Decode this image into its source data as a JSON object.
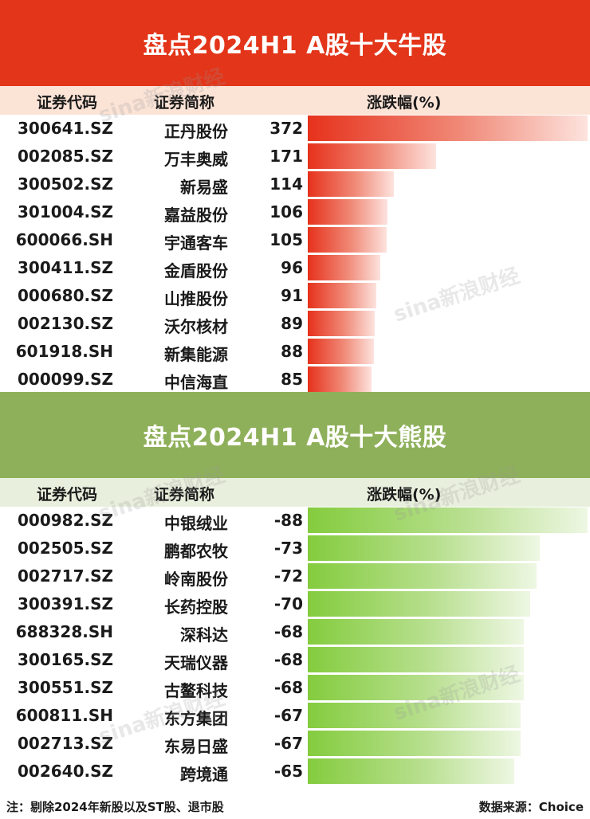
{
  "bull": {
    "title": "盘点2024H1 A股十大牛股",
    "headers": {
      "code": "证券代码",
      "name": "证券简称",
      "change": "涨跌幅(%)"
    }
  },
  "bear": {
    "title": "盘点2024H1 A股十大熊股",
    "headers": {
      "code": "证券代码",
      "name": "证券简称",
      "change": "涨跌幅(%)"
    }
  },
  "footer": {
    "note": "注：剔除2024年新股以及ST股、退市股",
    "source": "数据来源：Choice"
  },
  "watermark": "sina新浪财经",
  "colors": {
    "bull_banner": "#e33519",
    "bull_header_bg": "#fbe3d6",
    "bull_bar": "#e6321c",
    "bear_banner": "#8fb05a",
    "bear_header_bg": "#e8efdc",
    "bear_bar": "#84cc3e"
  },
  "chart_data": [
    {
      "type": "bar",
      "title": "盘点2024H1 A股十大牛股",
      "ylabel": "涨跌幅(%)",
      "categories": [
        "300641.SZ",
        "002085.SZ",
        "300502.SZ",
        "301004.SZ",
        "600066.SH",
        "300411.SZ",
        "000680.SZ",
        "002130.SZ",
        "601918.SH",
        "000099.SZ"
      ],
      "names": [
        "正丹股份",
        "万丰奥威",
        "新易盛",
        "嘉益股份",
        "宇通客车",
        "金盾股份",
        "山推股份",
        "沃尔核材",
        "新集能源",
        "中信海直"
      ],
      "values": [
        372,
        171,
        114,
        106,
        105,
        96,
        91,
        89,
        88,
        85
      ]
    },
    {
      "type": "bar",
      "title": "盘点2024H1 A股十大熊股",
      "ylabel": "涨跌幅(%)",
      "categories": [
        "000982.SZ",
        "002505.SZ",
        "002717.SZ",
        "300391.SZ",
        "688328.SH",
        "300165.SZ",
        "300551.SZ",
        "600811.SH",
        "002713.SZ",
        "002640.SZ"
      ],
      "names": [
        "中银绒业",
        "鹏都农牧",
        "岭南股份",
        "长药控股",
        "深科达",
        "天瑞仪器",
        "古鳌科技",
        "东方集团",
        "东易日盛",
        "跨境通"
      ],
      "values": [
        -88,
        -73,
        -72,
        -70,
        -68,
        -68,
        -68,
        -67,
        -67,
        -65
      ]
    }
  ]
}
